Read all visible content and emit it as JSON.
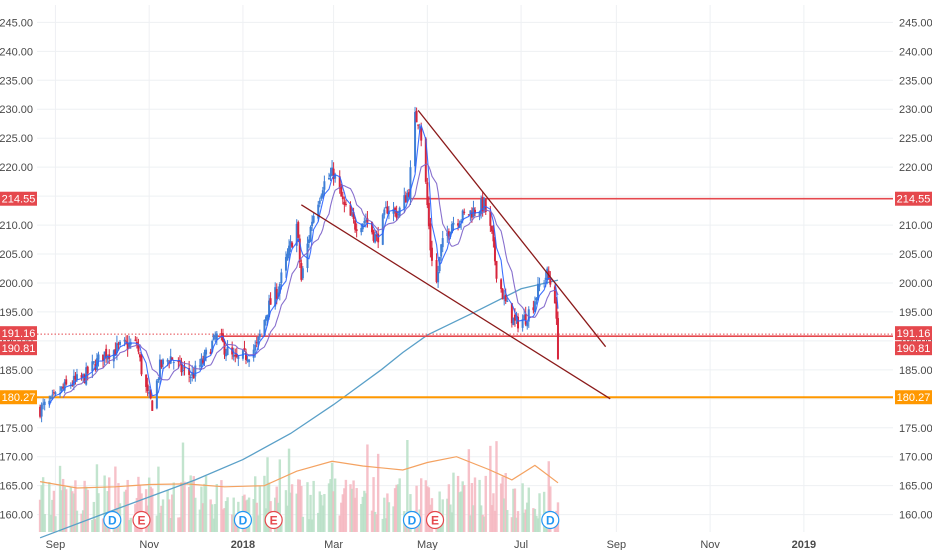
{
  "chart_data": {
    "type": "candlestick",
    "y_axis": {
      "min": 157,
      "max": 248,
      "ticks": [
        "160.00",
        "165.00",
        "170.00",
        "175.00",
        "180.00",
        "185.00",
        "190.00",
        "195.00",
        "200.00",
        "205.00",
        "210.00",
        "215.00",
        "220.00",
        "225.00",
        "230.00",
        "235.00",
        "240.00",
        "245.00"
      ],
      "side": "both"
    },
    "x_axis": {
      "start": "2017-08-20",
      "end": "2019-02-28",
      "ticks": [
        {
          "date": "2017-09-01",
          "label": "Sep",
          "bold": false
        },
        {
          "date": "2017-11-01",
          "label": "Nov",
          "bold": false
        },
        {
          "date": "2018-01-01",
          "label": "2018",
          "bold": true
        },
        {
          "date": "2018-03-01",
          "label": "Mar",
          "bold": false
        },
        {
          "date": "2018-05-01",
          "label": "May",
          "bold": false
        },
        {
          "date": "2018-07-01",
          "label": "Jul",
          "bold": false
        },
        {
          "date": "2018-09-01",
          "label": "Sep",
          "bold": false
        },
        {
          "date": "2018-11-01",
          "label": "Nov",
          "bold": false
        },
        {
          "date": "2019-01-01",
          "label": "2019",
          "bold": true
        }
      ]
    },
    "price_path": [
      [
        "2017-08-22",
        178.2
      ],
      [
        "2017-08-29",
        179.3
      ],
      [
        "2017-09-05",
        181.5
      ],
      [
        "2017-09-12",
        182.8
      ],
      [
        "2017-09-19",
        183.5
      ],
      [
        "2017-09-26",
        185.8
      ],
      [
        "2017-10-03",
        187.8
      ],
      [
        "2017-10-10",
        188.5
      ],
      [
        "2017-10-17",
        189.3
      ],
      [
        "2017-10-24",
        189.5
      ],
      [
        "2017-10-27",
        185.0
      ],
      [
        "2017-10-31",
        180.5
      ],
      [
        "2017-11-03",
        179.0
      ],
      [
        "2017-11-08",
        185.5
      ],
      [
        "2017-11-15",
        187.2
      ],
      [
        "2017-11-22",
        185.0
      ],
      [
        "2017-11-29",
        184.0
      ],
      [
        "2017-12-05",
        186.0
      ],
      [
        "2017-12-12",
        189.5
      ],
      [
        "2017-12-16",
        191.0
      ],
      [
        "2017-12-20",
        188.8
      ],
      [
        "2017-12-27",
        186.5
      ],
      [
        "2018-01-03",
        187.5
      ],
      [
        "2018-01-10",
        189.0
      ],
      [
        "2018-01-17",
        195.5
      ],
      [
        "2018-01-24",
        199.0
      ],
      [
        "2018-01-31",
        205.5
      ],
      [
        "2018-02-05",
        210.0
      ],
      [
        "2018-02-08",
        200.5
      ],
      [
        "2018-02-15",
        211.0
      ],
      [
        "2018-02-22",
        217.0
      ],
      [
        "2018-03-01",
        219.0
      ],
      [
        "2018-03-08",
        213.0
      ],
      [
        "2018-03-15",
        210.0
      ],
      [
        "2018-03-22",
        211.0
      ],
      [
        "2018-03-29",
        207.5
      ],
      [
        "2018-04-05",
        213.0
      ],
      [
        "2018-04-12",
        212.0
      ],
      [
        "2018-04-19",
        216.0
      ],
      [
        "2018-04-23",
        228.5
      ],
      [
        "2018-04-26",
        228.0
      ],
      [
        "2018-04-30",
        217.0
      ],
      [
        "2018-05-03",
        206.0
      ],
      [
        "2018-05-07",
        200.0
      ],
      [
        "2018-05-10",
        206.0
      ],
      [
        "2018-05-17",
        210.5
      ],
      [
        "2018-05-24",
        211.5
      ],
      [
        "2018-05-31",
        212.5
      ],
      [
        "2018-06-07",
        213.5
      ],
      [
        "2018-06-12",
        208.0
      ],
      [
        "2018-06-15",
        202.0
      ],
      [
        "2018-06-20",
        197.0
      ],
      [
        "2018-06-27",
        193.0
      ],
      [
        "2018-07-04",
        194.0
      ],
      [
        "2018-07-09",
        196.5
      ],
      [
        "2018-07-13",
        199.5
      ],
      [
        "2018-07-18",
        201.5
      ],
      [
        "2018-07-20",
        200.0
      ],
      [
        "2018-07-23",
        197.5
      ],
      [
        "2018-07-25",
        188.0
      ]
    ],
    "ma_200": [
      [
        "2017-08-22",
        156.0
      ],
      [
        "2017-10-01",
        160.0
      ],
      [
        "2017-12-01",
        166.0
      ],
      [
        "2018-01-01",
        169.5
      ],
      [
        "2018-02-01",
        174.0
      ],
      [
        "2018-03-01",
        179.0
      ],
      [
        "2018-04-01",
        185.0
      ],
      [
        "2018-04-15",
        188.0
      ],
      [
        "2018-05-01",
        191.0
      ],
      [
        "2018-06-01",
        195.0
      ],
      [
        "2018-07-01",
        199.0
      ],
      [
        "2018-07-25",
        200.5
      ]
    ],
    "volume_avg": [
      [
        "2017-08-22",
        165.7
      ],
      [
        "2017-09-15",
        164.6
      ],
      [
        "2017-10-10",
        164.8
      ],
      [
        "2017-11-01",
        165.2
      ],
      [
        "2017-11-25",
        165.3
      ],
      [
        "2017-12-20",
        164.8
      ],
      [
        "2018-01-15",
        165.0
      ],
      [
        "2018-02-05",
        167.5
      ],
      [
        "2018-02-28",
        169.2
      ],
      [
        "2018-03-20",
        168.4
      ],
      [
        "2018-04-15",
        167.7
      ],
      [
        "2018-05-01",
        169.0
      ],
      [
        "2018-05-20",
        170.0
      ],
      [
        "2018-06-10",
        167.8
      ],
      [
        "2018-06-25",
        166.0
      ],
      [
        "2018-07-10",
        168.5
      ],
      [
        "2018-07-25",
        165.5
      ]
    ],
    "horizontal_levels": [
      {
        "value": 214.55,
        "label": "214.55",
        "color": "#e5484d",
        "from": "2018-04-20",
        "style": "solid"
      },
      {
        "value": 191.16,
        "label": "191.16",
        "color": "#e5484d",
        "from": "2017-08-20",
        "style": "dotted"
      },
      {
        "value": 190.81,
        "label": "190.81",
        "color": "#e5484d",
        "from": "2017-12-12",
        "style": "solid"
      },
      {
        "value": 180.27,
        "label": "180.27",
        "color": "#ff9800",
        "from": "2017-08-20",
        "style": "solid"
      }
    ],
    "trend_lines": [
      {
        "from": [
          "2018-02-08",
          213.5
        ],
        "to": [
          "2018-08-28",
          180.0
        ],
        "color": "#8b1a1a"
      },
      {
        "from": [
          "2018-04-25",
          229.8
        ],
        "to": [
          "2018-08-25",
          189.0
        ],
        "color": "#8b1a1a"
      }
    ],
    "event_markers": [
      {
        "date": "2017-10-08",
        "label": "D",
        "kind": "dividend"
      },
      {
        "date": "2017-10-27",
        "label": "E",
        "kind": "earnings"
      },
      {
        "date": "2018-01-01",
        "label": "D",
        "kind": "dividend"
      },
      {
        "date": "2018-01-21",
        "label": "E",
        "kind": "earnings"
      },
      {
        "date": "2018-04-21",
        "label": "D",
        "kind": "dividend"
      },
      {
        "date": "2018-05-06",
        "label": "E",
        "kind": "earnings"
      },
      {
        "date": "2018-07-20",
        "label": "D",
        "kind": "dividend"
      }
    ]
  },
  "colors": {
    "up": "#3f7fd6",
    "down": "#d7263d",
    "fast_ma": "#2962ff",
    "ma_200": "#5aa0c8",
    "volume_avg": "#f4a261",
    "volume_up": "#b7dfc6",
    "volume_down": "#f4b6c0",
    "dividend": "#2196f3",
    "earnings": "#e5484d",
    "grid": "#eef0f3",
    "axis_text": "#4a4a4a"
  }
}
